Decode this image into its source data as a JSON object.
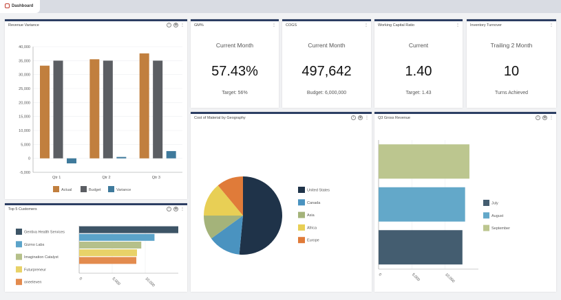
{
  "tab": {
    "label": "Dashboard",
    "icon": "dashboard-icon"
  },
  "panels": {
    "revenue": {
      "title": "Revenue Variance"
    },
    "top5": {
      "title": "Top 5 Customers"
    },
    "gm": {
      "title": "GM%",
      "label": "Current Month",
      "value": "57.43%",
      "sub": "Target: 56%"
    },
    "cogs": {
      "title": "COGS",
      "label": "Current Month",
      "value": "497,642",
      "sub": "Budget: 6,000,000"
    },
    "wcr": {
      "title": "Working Capital Ratio",
      "label": "Current",
      "value": "1.40",
      "sub": "Target: 1.43"
    },
    "inv": {
      "title": "Inventory Turnover",
      "label": "Trailing 2 Month",
      "value": "10",
      "sub": "Turns Achieved"
    },
    "pie": {
      "title": "Cost of Material by Geography"
    },
    "q3": {
      "title": "Q3 Gross Revenue"
    }
  },
  "chart_data": [
    {
      "type": "bar",
      "categories": [
        "Qtr 1",
        "Qtr 2",
        "Qtr 3"
      ],
      "ylim": [
        -5000,
        40000
      ],
      "yticks": [
        "40,000",
        "35,000",
        "30,000",
        "25,000",
        "20,000",
        "15,000",
        "10,000",
        "5,000",
        "0",
        "-5,000"
      ],
      "series": [
        {
          "name": "Actual",
          "color": "#c17f3e",
          "values": [
            33200,
            35500,
            37600
          ]
        },
        {
          "name": "Budget",
          "color": "#5b5e63",
          "values": [
            35000,
            35000,
            35000
          ]
        },
        {
          "name": "Variance",
          "color": "#3f7a9c",
          "values": [
            -1800,
            500,
            2600
          ]
        }
      ],
      "grid": true,
      "legend": "bottom"
    },
    {
      "type": "bar",
      "orientation": "horizontal",
      "categories": [
        "Gentiva Health Services",
        "Gizmo Labs",
        "Imagination Catalyst",
        "Futurpreneur",
        "oneeleven"
      ],
      "values": [
        15000,
        11400,
        9400,
        8750,
        8650
      ],
      "colors": [
        "#3d5466",
        "#5ba3c9",
        "#b5c08a",
        "#e8d268",
        "#e38b4e"
      ],
      "xticks": [
        "0",
        "5,000",
        "10,000"
      ],
      "xlim": [
        0,
        15000
      ],
      "legend": "left"
    },
    {
      "type": "pie",
      "categories": [
        "United States",
        "Canada",
        "Asia",
        "Africa",
        "Europe"
      ],
      "values": [
        51.5,
        13.5,
        10,
        14,
        11
      ],
      "colors": [
        "#1f3349",
        "#4a93c0",
        "#a4b37a",
        "#e8cf55",
        "#e07b39"
      ],
      "legend": "right"
    },
    {
      "type": "bar",
      "orientation": "horizontal",
      "categories": [
        "September",
        "August",
        "July"
      ],
      "values": [
        13650,
        13000,
        12600
      ],
      "colors": [
        "#bcc68f",
        "#63a8c9",
        "#445d70"
      ],
      "legend_items": [
        "July",
        "August",
        "September"
      ],
      "legend_colors": [
        "#445d70",
        "#63a8c9",
        "#bcc68f"
      ],
      "xticks": [
        "0",
        "5,000",
        "10,000"
      ],
      "xlim": [
        0,
        15000
      ],
      "legend": "right"
    }
  ]
}
